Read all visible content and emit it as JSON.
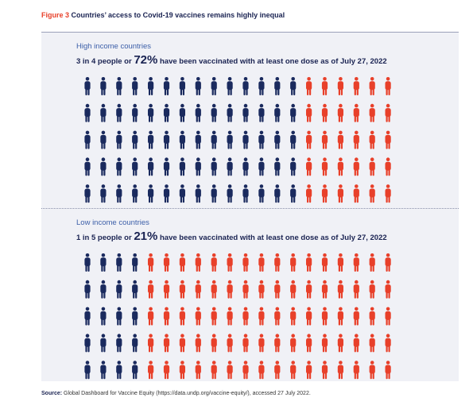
{
  "figure": {
    "label": "Figure 3",
    "title": "Countries’ access to Covid-19 vaccines remains highly inequal"
  },
  "high": {
    "subtitle": "High income countries",
    "head_pre": "3 in 4 people or ",
    "head_big": "72%",
    "head_post": " have been vaccinated with at least one dose as of July 27, 2022"
  },
  "low": {
    "subtitle": "Low income countries",
    "head_pre": "1 in 5 people or ",
    "head_big": "21%",
    "head_post": " have been vaccinated with at least one dose as of July 27, 2022"
  },
  "source": {
    "label": "Source:",
    "text": " Global Dashboard for Vaccine Equity (https://data.undp.org/vaccine-equity/), accessed 27 July 2022."
  },
  "colors": {
    "vaccinated": "#1a2a5e",
    "not_vaccinated": "#e8402a"
  },
  "chart_data": [
    {
      "type": "pictogram",
      "group": "High income countries",
      "rows": 5,
      "columns": 20,
      "vaccinated_columns": 14,
      "vaccinated_percent": 72
    },
    {
      "type": "pictogram",
      "group": "Low income countries",
      "rows": 5,
      "columns": 20,
      "vaccinated_columns": 4,
      "vaccinated_percent": 21
    }
  ]
}
